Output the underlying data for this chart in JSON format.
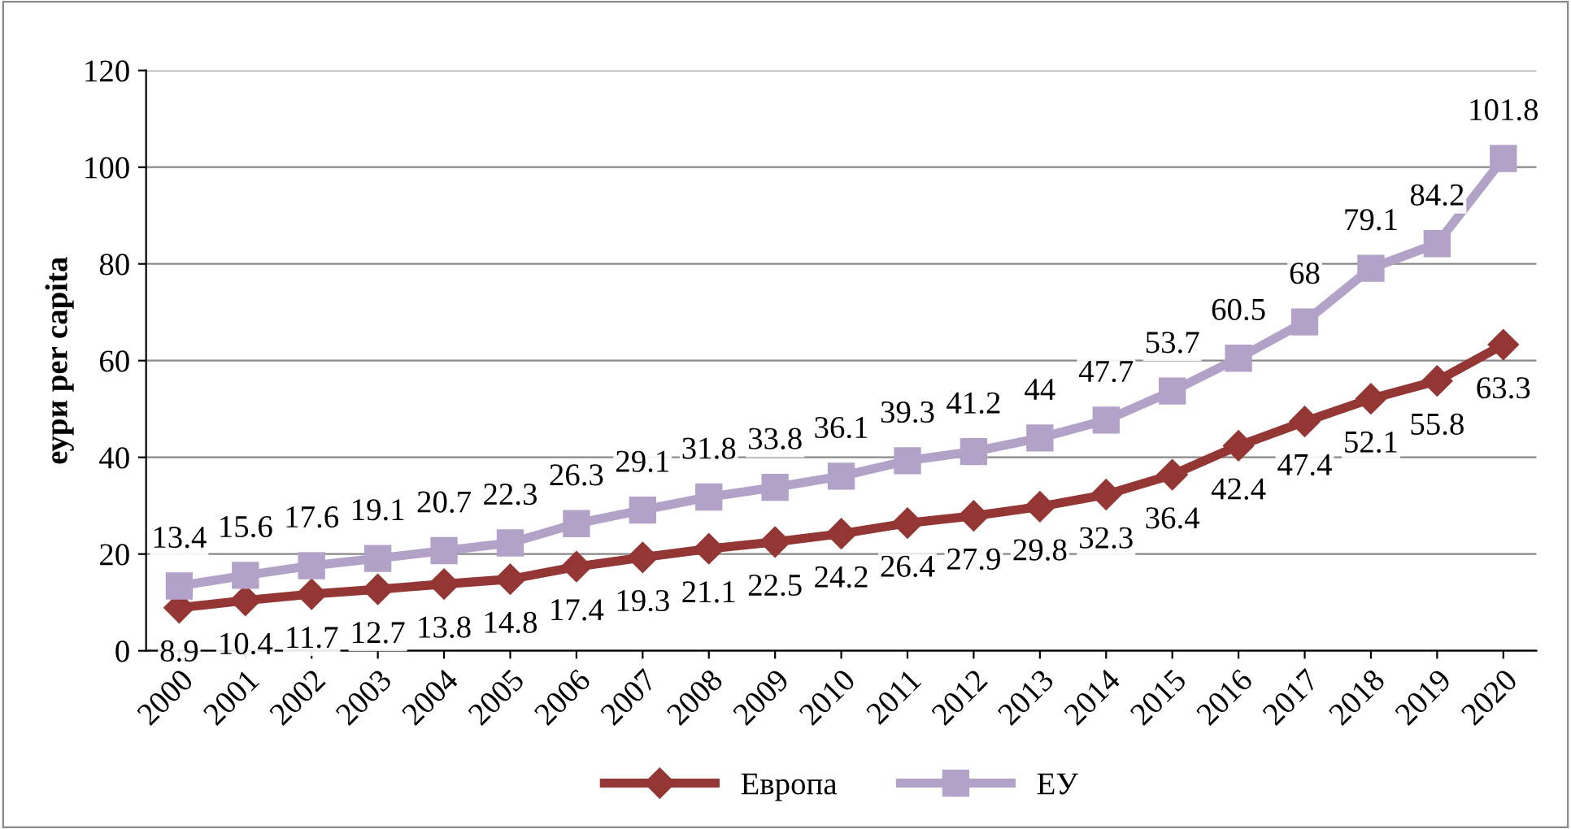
{
  "chart_data": {
    "type": "line",
    "ylabel": "еури per capita",
    "categories": [
      "2000",
      "2001",
      "2002",
      "2003",
      "2004",
      "2005",
      "2006",
      "2007",
      "2008",
      "2009",
      "2010",
      "2011",
      "2012",
      "2013",
      "2014",
      "2015",
      "2016",
      "2017",
      "2018",
      "2019",
      "2020"
    ],
    "series": [
      {
        "name": "Европа",
        "color": "#943634",
        "marker": "diamond",
        "values": [
          8.9,
          10.4,
          11.7,
          12.7,
          13.8,
          14.8,
          17.4,
          19.3,
          21.1,
          22.5,
          24.2,
          26.4,
          27.9,
          29.8,
          32.3,
          36.4,
          42.4,
          47.4,
          52.1,
          55.8,
          63.3
        ]
      },
      {
        "name": "ЕУ",
        "color": "#b3a2c7",
        "marker": "square",
        "values": [
          13.4,
          15.6,
          17.6,
          19.1,
          20.7,
          22.3,
          26.3,
          29.1,
          31.8,
          33.8,
          36.1,
          39.3,
          41.2,
          44,
          47.7,
          53.7,
          60.5,
          68,
          79.1,
          84.2,
          101.8
        ]
      }
    ],
    "ylim": [
      0,
      120
    ],
    "yticks": [
      0,
      20,
      40,
      60,
      80,
      100,
      120
    ],
    "grid": "y",
    "legend": "bottom",
    "data_labels": true,
    "line_style": "solid"
  }
}
